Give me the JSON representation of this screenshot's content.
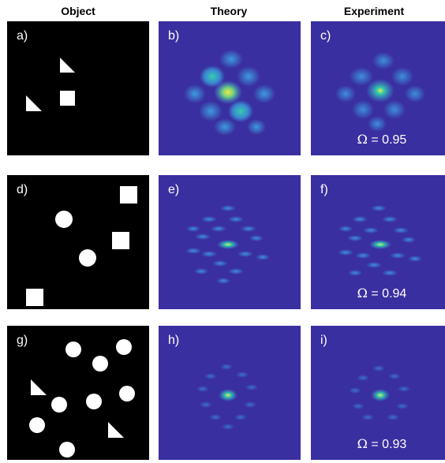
{
  "headers": {
    "object": "Object",
    "theory": "Theory",
    "experiment": "Experiment"
  },
  "rows": [
    {
      "object_label": "a)",
      "theory_label": "b)",
      "experiment_label": "c)",
      "omega_symbol": "Ω",
      "omega_text": "= 0.95"
    },
    {
      "object_label": "d)",
      "theory_label": "e)",
      "experiment_label": "f)",
      "omega_symbol": "Ω",
      "omega_text": "= 0.94"
    },
    {
      "object_label": "g)",
      "theory_label": "h)",
      "experiment_label": "i)",
      "omega_symbol": "Ω",
      "omega_text": "= 0.93"
    }
  ],
  "colors": {
    "object_background": "#000000",
    "object_shape": "#ffffff",
    "pattern_background": "#3a2fa0",
    "pattern_mid": "#3d7fd6",
    "pattern_high": "#2fc7a8",
    "pattern_peak": "#f6e84a"
  }
}
